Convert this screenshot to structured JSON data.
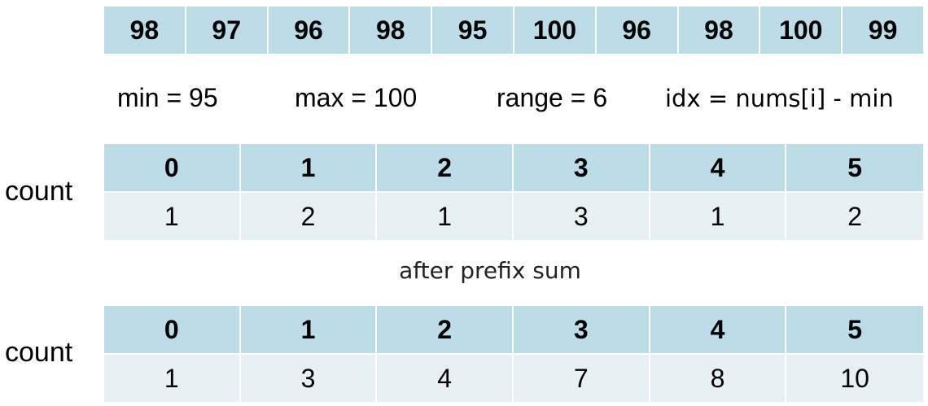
{
  "nums": [
    "98",
    "97",
    "96",
    "98",
    "95",
    "100",
    "96",
    "98",
    "100",
    "99"
  ],
  "info": {
    "min": "min = 95",
    "max": "max = 100",
    "range": "range = 6",
    "idx": "idx = nums[i] - min"
  },
  "count_table_1": {
    "label": "count",
    "headers": [
      "0",
      "1",
      "2",
      "3",
      "4",
      "5"
    ],
    "values": [
      "1",
      "2",
      "1",
      "3",
      "1",
      "2"
    ]
  },
  "caption": "after prefix sum",
  "count_table_2": {
    "label": "count",
    "headers": [
      "0",
      "1",
      "2",
      "3",
      "4",
      "5"
    ],
    "values": [
      "1",
      "3",
      "4",
      "7",
      "8",
      "10"
    ]
  }
}
